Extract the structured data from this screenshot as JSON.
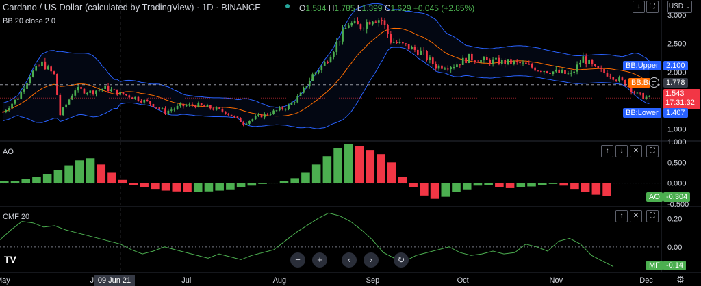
{
  "header": {
    "symbol_title": "Cardano / US Dollar (calculated by TradingView) · 1D · BINANCE",
    "ohlc": {
      "o_label": "O",
      "o": "1.584",
      "h_label": "H",
      "h": "1.785",
      "l_label": "L",
      "l": "1.399",
      "c_label": "C",
      "c": "1.629",
      "change": "+0.045 (+2.85%)"
    },
    "bb_legend": "BB 20 close 2 0",
    "currency": "USD"
  },
  "colors": {
    "up": "#4caf50",
    "down": "#f23645",
    "bb_band": "#2962ff",
    "bb_basis": "#ff6d00",
    "cmf": "#4caf50",
    "price_badge": "#f23645",
    "background": "#000000",
    "grid": "#2a2e39",
    "text": "#d1d4dc"
  },
  "chart_data": [
    {
      "type": "candlestick",
      "title": "Cardano / US Dollar (calculated by TradingView)",
      "ylim": [
        0.8,
        3.05
      ],
      "y_ticks": [
        "3.000",
        "2.500",
        "2.000",
        "1.500",
        "1.000"
      ],
      "x_ticks": [
        "May",
        "Jun",
        "Jul",
        "Aug",
        "Sep",
        "Oct",
        "Nov",
        "Dec"
      ],
      "crosshair_x": "09 Jun 21",
      "crosshair_y": "1.778",
      "series": [
        {
          "name": "Close",
          "points": [
            {
              "date": "2021-05-01",
              "value": 1.3
            },
            {
              "date": "2021-05-06",
              "value": 1.55
            },
            {
              "date": "2021-05-10",
              "value": 1.95
            },
            {
              "date": "2021-05-14",
              "value": 2.15
            },
            {
              "date": "2021-05-18",
              "value": 1.95
            },
            {
              "date": "2021-05-20",
              "value": 1.25
            },
            {
              "date": "2021-05-25",
              "value": 1.7
            },
            {
              "date": "2021-05-30",
              "value": 1.65
            },
            {
              "date": "2021-06-04",
              "value": 1.72
            },
            {
              "date": "2021-06-09",
              "value": 1.62
            },
            {
              "date": "2021-06-14",
              "value": 1.55
            },
            {
              "date": "2021-06-19",
              "value": 1.45
            },
            {
              "date": "2021-06-24",
              "value": 1.3
            },
            {
              "date": "2021-06-29",
              "value": 1.4
            },
            {
              "date": "2021-07-04",
              "value": 1.42
            },
            {
              "date": "2021-07-09",
              "value": 1.37
            },
            {
              "date": "2021-07-14",
              "value": 1.3
            },
            {
              "date": "2021-07-20",
              "value": 1.1
            },
            {
              "date": "2021-07-25",
              "value": 1.22
            },
            {
              "date": "2021-07-30",
              "value": 1.3
            },
            {
              "date": "2021-08-04",
              "value": 1.4
            },
            {
              "date": "2021-08-08",
              "value": 1.6
            },
            {
              "date": "2021-08-12",
              "value": 1.95
            },
            {
              "date": "2021-08-16",
              "value": 2.15
            },
            {
              "date": "2021-08-20",
              "value": 2.5
            },
            {
              "date": "2021-08-24",
              "value": 2.85
            },
            {
              "date": "2021-08-28",
              "value": 2.8
            },
            {
              "date": "2021-09-01",
              "value": 2.95
            },
            {
              "date": "2021-09-04",
              "value": 2.92
            },
            {
              "date": "2021-09-07",
              "value": 2.55
            },
            {
              "date": "2021-09-12",
              "value": 2.45
            },
            {
              "date": "2021-09-17",
              "value": 2.35
            },
            {
              "date": "2021-09-22",
              "value": 2.1
            },
            {
              "date": "2021-09-28",
              "value": 2.12
            },
            {
              "date": "2021-10-03",
              "value": 2.25
            },
            {
              "date": "2021-10-08",
              "value": 2.2
            },
            {
              "date": "2021-10-14",
              "value": 2.18
            },
            {
              "date": "2021-10-20",
              "value": 2.15
            },
            {
              "date": "2021-10-26",
              "value": 2.05
            },
            {
              "date": "2021-11-01",
              "value": 2.0
            },
            {
              "date": "2021-11-06",
              "value": 1.95
            },
            {
              "date": "2021-11-10",
              "value": 2.25
            },
            {
              "date": "2021-11-14",
              "value": 2.05
            },
            {
              "date": "2021-11-19",
              "value": 1.95
            },
            {
              "date": "2021-11-24",
              "value": 1.8
            },
            {
              "date": "2021-11-28",
              "value": 1.6
            },
            {
              "date": "2021-12-02",
              "value": 1.543
            }
          ]
        },
        {
          "name": "BB:Upper",
          "last": "2.100"
        },
        {
          "name": "BB:Basis",
          "last": "1.778"
        },
        {
          "name": "BB:Lower",
          "last": "1.407"
        }
      ],
      "last_price": "1.543",
      "countdown": "17:31:32"
    },
    {
      "type": "bar",
      "title": "AO",
      "ylim": [
        -0.55,
        1.0
      ],
      "y_ticks": [
        "1.000",
        "0.500",
        "0.000",
        "-0.500"
      ],
      "series": [
        {
          "name": "AO",
          "last": "-0.304",
          "values": [
            0.05,
            0.05,
            0.1,
            0.15,
            0.22,
            0.32,
            0.43,
            0.55,
            0.6,
            0.45,
            0.25,
            0.08,
            -0.05,
            -0.1,
            -0.14,
            -0.18,
            -0.2,
            -0.22,
            -0.22,
            -0.2,
            -0.18,
            -0.15,
            -0.1,
            -0.06,
            -0.02,
            0.01,
            0.05,
            0.12,
            0.25,
            0.45,
            0.65,
            0.85,
            0.95,
            0.9,
            0.8,
            0.7,
            0.5,
            0.15,
            -0.1,
            -0.3,
            -0.38,
            -0.33,
            -0.22,
            -0.15,
            -0.06,
            -0.05,
            -0.1,
            -0.12,
            -0.1,
            -0.08,
            -0.05,
            -0.02,
            -0.06,
            -0.14,
            -0.22,
            -0.28,
            -0.304
          ]
        }
      ]
    },
    {
      "type": "line",
      "title": "CMF 20",
      "ylim": [
        -0.18,
        0.28
      ],
      "y_ticks": [
        "0.20",
        "0.00"
      ],
      "series": [
        {
          "name": "MF",
          "last": "-0.14",
          "values": [
            0.05,
            0.12,
            0.18,
            0.17,
            0.14,
            0.15,
            0.12,
            0.1,
            0.08,
            0.06,
            0.04,
            0.02,
            -0.02,
            -0.05,
            -0.03,
            0.0,
            -0.02,
            -0.04,
            -0.06,
            -0.08,
            -0.05,
            -0.07,
            -0.09,
            -0.06,
            -0.04,
            -0.02,
            0.04,
            0.1,
            0.15,
            0.2,
            0.24,
            0.22,
            0.18,
            0.12,
            0.05,
            -0.04,
            -0.08,
            -0.1,
            -0.06,
            -0.04,
            -0.02,
            0.0,
            -0.04,
            -0.06,
            -0.05,
            -0.03,
            -0.05,
            -0.04,
            0.02,
            0.0,
            -0.03,
            0.04,
            0.06,
            0.02,
            -0.06,
            -0.1,
            -0.14
          ]
        }
      ]
    }
  ]
}
